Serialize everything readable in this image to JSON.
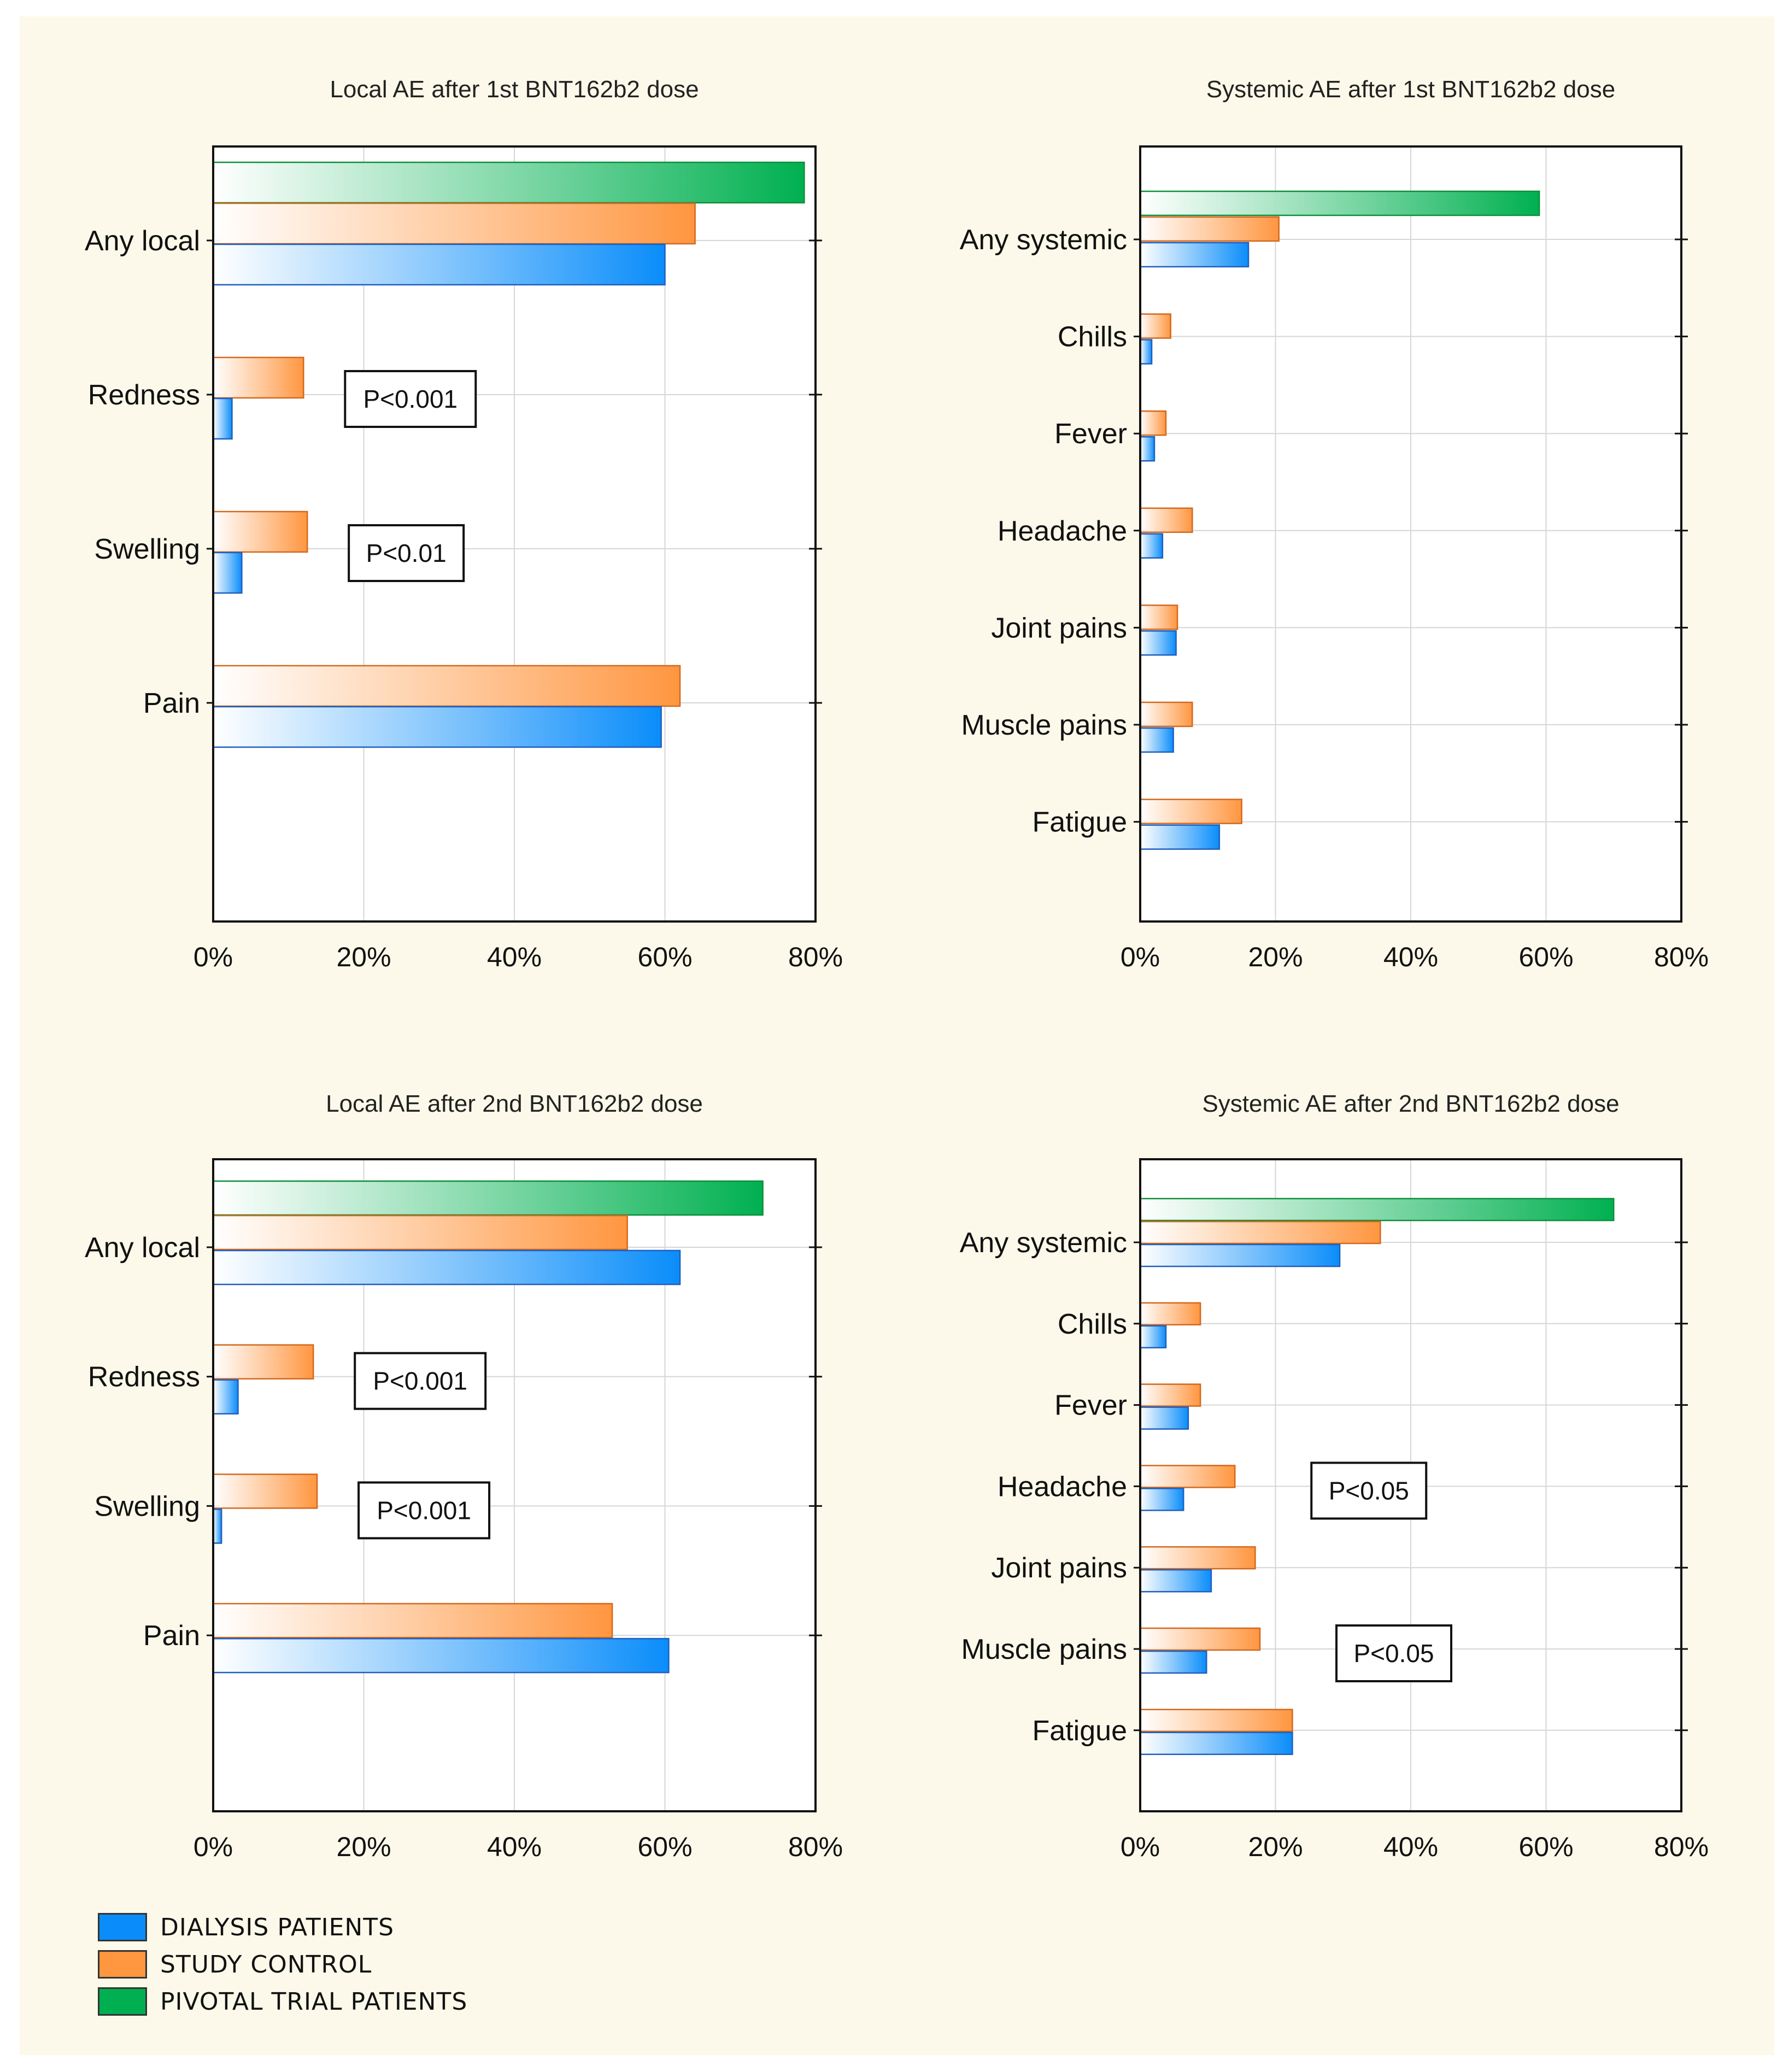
{
  "colors": {
    "dialysis": "#0a8dfa",
    "control": "#ff9640",
    "pivotal": "#00b050",
    "dialysis_border": "#1f5fbf",
    "control_border": "#d2691e",
    "pivotal_border": "#0c8f3a",
    "grid": "#d6d6d6",
    "background": "#fdf9ea"
  },
  "legend": [
    {
      "key": "dialysis",
      "label": "DIALYSIS PATIENTS"
    },
    {
      "key": "control",
      "label": "STUDY CONTROL"
    },
    {
      "key": "pivotal",
      "label": "PIVOTAL TRIAL PATIENTS"
    }
  ],
  "chart_data": [
    {
      "type": "bar",
      "orientation": "horizontal",
      "title": "Local AE after 1st BNT162b2 dose",
      "xlim": [
        0,
        80
      ],
      "xticks": [
        "0%",
        "20%",
        "40%",
        "60%",
        "80%"
      ],
      "categories": [
        "Any local",
        "Redness",
        "Swelling",
        "Pain"
      ],
      "series": [
        {
          "name": "PIVOTAL TRIAL PATIENTS",
          "key": "pivotal",
          "values": [
            78.5,
            null,
            null,
            null
          ]
        },
        {
          "name": "STUDY CONTROL",
          "key": "control",
          "values": [
            64,
            12,
            12.5,
            62
          ]
        },
        {
          "name": "DIALYSIS PATIENTS",
          "key": "dialysis",
          "values": [
            60,
            2.5,
            3.8,
            59.5
          ]
        }
      ],
      "annotations": [
        {
          "category": "Redness",
          "text": "P<0.001"
        },
        {
          "category": "Swelling",
          "text": "P<0.01"
        }
      ]
    },
    {
      "type": "bar",
      "orientation": "horizontal",
      "title": "Systemic AE after 1st BNT162b2 dose",
      "xlim": [
        0,
        80
      ],
      "xticks": [
        "0%",
        "20%",
        "40%",
        "60%",
        "80%"
      ],
      "categories": [
        "Any systemic",
        "Chills",
        "Fever",
        "Headache",
        "Joint pains",
        "Muscle pains",
        "Fatigue"
      ],
      "series": [
        {
          "name": "PIVOTAL TRIAL PATIENTS",
          "key": "pivotal",
          "values": [
            59,
            null,
            null,
            null,
            null,
            null,
            null
          ]
        },
        {
          "name": "STUDY CONTROL",
          "key": "control",
          "values": [
            20.5,
            4.5,
            3.8,
            7.7,
            5.5,
            7.7,
            15
          ]
        },
        {
          "name": "DIALYSIS PATIENTS",
          "key": "dialysis",
          "values": [
            16,
            1.7,
            2.1,
            3.3,
            5.3,
            4.9,
            11.7
          ]
        }
      ],
      "annotations": []
    },
    {
      "type": "bar",
      "orientation": "horizontal",
      "title": "Local AE after 2nd BNT162b2 dose",
      "xlim": [
        0,
        80
      ],
      "xticks": [
        "0%",
        "20%",
        "40%",
        "60%",
        "80%"
      ],
      "categories": [
        "Any local",
        "Redness",
        "Swelling",
        "Pain"
      ],
      "series": [
        {
          "name": "PIVOTAL TRIAL PATIENTS",
          "key": "pivotal",
          "values": [
            73,
            null,
            null,
            null
          ]
        },
        {
          "name": "STUDY CONTROL",
          "key": "control",
          "values": [
            55,
            13.3,
            13.8,
            53
          ]
        },
        {
          "name": "DIALYSIS PATIENTS",
          "key": "dialysis",
          "values": [
            62,
            3.3,
            1.1,
            60.5
          ]
        }
      ],
      "annotations": [
        {
          "category": "Redness",
          "text": "P<0.001"
        },
        {
          "category": "Swelling",
          "text": "P<0.001"
        }
      ]
    },
    {
      "type": "bar",
      "orientation": "horizontal",
      "title": "Systemic AE after 2nd BNT162b2 dose",
      "xlim": [
        0,
        80
      ],
      "xticks": [
        "0%",
        "20%",
        "40%",
        "60%",
        "80%"
      ],
      "categories": [
        "Any systemic",
        "Chills",
        "Fever",
        "Headache",
        "Joint pains",
        "Muscle pains",
        "Fatigue"
      ],
      "series": [
        {
          "name": "PIVOTAL TRIAL PATIENTS",
          "key": "pivotal",
          "values": [
            70,
            null,
            null,
            null,
            null,
            null,
            null
          ]
        },
        {
          "name": "STUDY CONTROL",
          "key": "control",
          "values": [
            35.5,
            8.9,
            8.9,
            14,
            17,
            17.7,
            22.5
          ]
        },
        {
          "name": "DIALYSIS PATIENTS",
          "key": "dialysis",
          "values": [
            29.5,
            3.8,
            7.1,
            6.4,
            10.5,
            9.8,
            22.5
          ]
        }
      ],
      "annotations": [
        {
          "category": "Headache",
          "text": "P<0.05"
        },
        {
          "category": "Muscle pains",
          "text": "P<0.05"
        }
      ]
    }
  ]
}
